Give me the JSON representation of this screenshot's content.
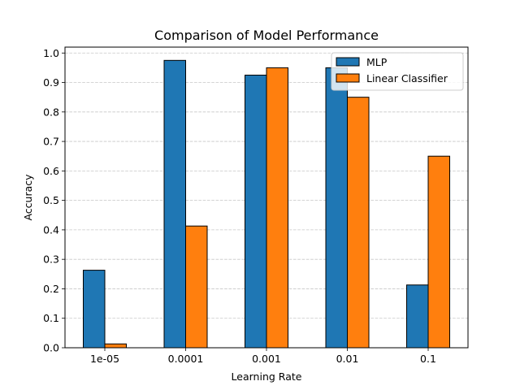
{
  "chart_data": {
    "type": "bar",
    "title": "Comparison of Model Performance",
    "xlabel": "Learning Rate",
    "ylabel": "Accuracy",
    "categories": [
      "1e-05",
      "0.0001",
      "0.001",
      "0.01",
      "0.1"
    ],
    "series": [
      {
        "name": "MLP",
        "color": "#1f77b4",
        "values": [
          0.263,
          0.975,
          0.925,
          0.95,
          0.213
        ]
      },
      {
        "name": "Linear Classifier",
        "color": "#ff7f0e",
        "values": [
          0.013,
          0.413,
          0.95,
          0.85,
          0.65
        ]
      }
    ],
    "ylim": [
      0,
      1.02
    ],
    "yticks": [
      "0.0",
      "0.1",
      "0.2",
      "0.3",
      "0.4",
      "0.5",
      "0.6",
      "0.7",
      "0.8",
      "0.9",
      "1.0"
    ],
    "ytick_values": [
      0,
      0.1,
      0.2,
      0.3,
      0.4,
      0.5,
      0.6,
      0.7,
      0.8,
      0.9,
      1.0
    ],
    "grid": {
      "y": true,
      "style": "dashed"
    },
    "legend_position": "top-right"
  }
}
